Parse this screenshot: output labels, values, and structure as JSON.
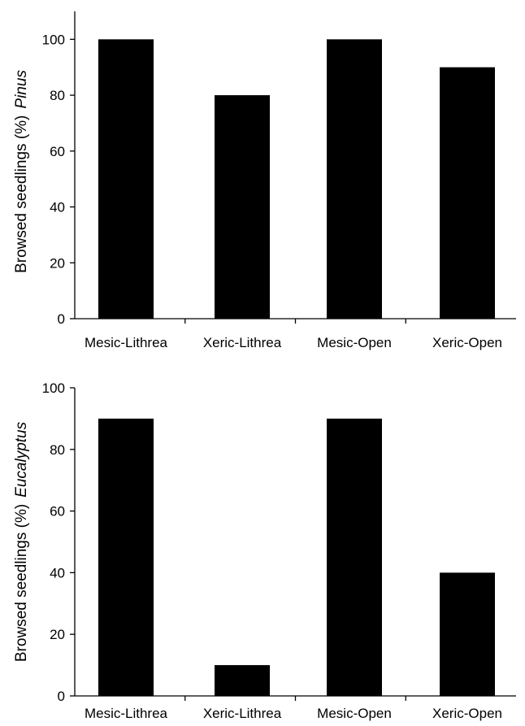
{
  "chart_data": [
    {
      "type": "bar",
      "categories": [
        "Mesic-Lithrea",
        "Xeric-Lithrea",
        "Mesic-Open",
        "Xeric-Open"
      ],
      "values": [
        100,
        80,
        100,
        90
      ],
      "ylabel": "Browsed seedlings (%)",
      "ylabel_species": "Pinus",
      "yticks": [
        0,
        20,
        40,
        60,
        80,
        100
      ],
      "ylim": [
        0,
        110
      ],
      "bar_color": "#000000",
      "grid": false,
      "legend": "none"
    },
    {
      "type": "bar",
      "categories": [
        "Mesic-Lithrea",
        "Xeric-Lithrea",
        "Mesic-Open",
        "Xeric-Open"
      ],
      "values": [
        90,
        10,
        90,
        40
      ],
      "ylabel": "Browsed seedlings (%)",
      "ylabel_species": "Eucalyptus",
      "yticks": [
        0,
        20,
        40,
        60,
        80,
        100
      ],
      "ylim": [
        0,
        100
      ],
      "bar_color": "#000000",
      "grid": false,
      "legend": "none"
    }
  ]
}
